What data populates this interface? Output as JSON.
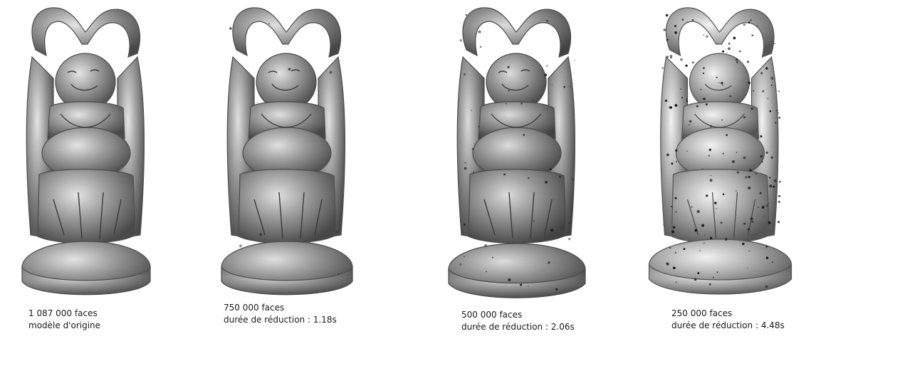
{
  "models": [
    {
      "faces": "1 087 000 faces",
      "detail": "modèle d'origine",
      "shade": "#8f8f8f",
      "speckle": 0
    },
    {
      "faces": "750 000 faces",
      "detail": "durée de réduction : 1.18s",
      "shade": "#8c8c8c",
      "speckle": 0.1
    },
    {
      "faces": "500 000 faces",
      "detail": "durée de réduction : 2.06s",
      "shade": "#888888",
      "speckle": 0.4
    },
    {
      "faces": "250 000 faces",
      "detail": "durée de réduction : 4.48s",
      "shade": "#a6a6a6",
      "speckle": 1
    }
  ]
}
